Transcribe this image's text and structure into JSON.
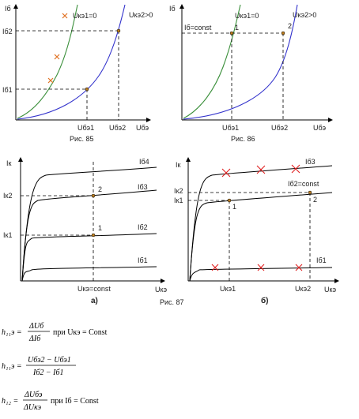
{
  "fig85": {
    "y_label": "Iб",
    "x_label": "Uбэ",
    "curve1_label": "Uкэ1=0",
    "curve2_label": "Uкэ2>0",
    "y_tick_high": "Iб2",
    "y_tick_low": "Iб1",
    "x_tick_1": "Uбэ1",
    "x_tick_2": "Uбэ2",
    "caption": "Рис. 85",
    "colors": {
      "curve1": "#3a8f3a",
      "curve2": "#3333cc",
      "cross": "#e07020",
      "point": "#c08020"
    }
  },
  "fig86": {
    "y_label": "Iб",
    "x_label": "Uбэ",
    "curve1_label": "Uкэ1=0",
    "curve2_label": "Uкэ2>0",
    "const_label": "Iб=const",
    "point1": "1",
    "point2": "2",
    "x_tick_1": "Uбэ1",
    "x_tick_2": "Uбэ2",
    "caption": "Рис. 86"
  },
  "fig87a": {
    "y_label": "Iк",
    "x_label": "Uкэ",
    "curve_labels": [
      "Iб4",
      "Iб3",
      "Iб2",
      "Iб1"
    ],
    "y_tick_high": "Iк2",
    "y_tick_low": "Iк1",
    "point1": "1",
    "point2": "2",
    "x_tick": "Uкэ=const",
    "sub_caption": "а)"
  },
  "fig87b": {
    "y_label": "Iк",
    "x_label": "Uкэ",
    "curve_labels": [
      "Iб3",
      "Iб2=const",
      "Iб1"
    ],
    "y_tick_high": "Iк2",
    "y_tick_low": "Iк1",
    "point1": "1",
    "point2": "2",
    "x_tick_1": "Uкэ1",
    "x_tick_2": "Uкэ2",
    "sub_caption": "б)",
    "colors": {
      "cross": "#e02020"
    }
  },
  "fig87_caption": "Рис. 87",
  "formulas": {
    "f1": {
      "lhs": "h₁₁э =",
      "num": "ΔUб",
      "den": "ΔIб",
      "tail": "при Uкэ = Const"
    },
    "f2": {
      "lhs": "h₁₁э =",
      "num": "Uбэ2 − Uбэ1",
      "den": "Iб2 − Iб1"
    },
    "f3": {
      "lhs": "h₁₂ =",
      "num": "ΔUбэ",
      "den": "ΔUкэ",
      "tail": "при Iб = Const"
    }
  }
}
